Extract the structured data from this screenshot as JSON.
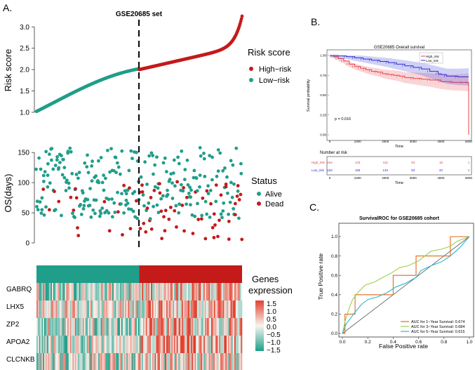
{
  "colors": {
    "high": "#c41a1a",
    "low": "#1f9e89",
    "dead": "#c41a1a",
    "alive": "#1f9e89",
    "km_high": "#e8404a",
    "km_low": "#2b2bd6",
    "auc1": "#e5681c",
    "auc3": "#9bd14a",
    "auc5": "#2bb5d8"
  },
  "panel_labels": {
    "a": "A.",
    "b": "B.",
    "c": "C."
  },
  "chart_data": [
    {
      "id": "risk-score",
      "type": "scatter",
      "title": "GSE20685 set",
      "ylabel": "Risk score",
      "ylim": [
        0.95,
        3.3
      ],
      "yticks": [
        "1.0",
        "1.5",
        "2.0",
        "2.5",
        "3.0"
      ],
      "cutoff_index": 163,
      "n": 327,
      "cutoff_value": 2.0,
      "legend_title": "Risk score",
      "legend": [
        "High−risk",
        "Low−risk"
      ]
    },
    {
      "id": "survival-status",
      "type": "scatter",
      "ylabel": "OS(days)",
      "ylim": [
        0,
        170
      ],
      "yticks": [
        "0",
        "50",
        "100",
        "150"
      ],
      "legend_title": "Status",
      "legend": [
        "Alive",
        "Dead"
      ]
    },
    {
      "id": "expression-heatmap",
      "type": "heatmap",
      "genes": [
        "GABRQ",
        "LHX5",
        "ZP2",
        "APOA2",
        "CLCNKB"
      ],
      "legend_title": [
        "Genes",
        "expression"
      ],
      "scale": [
        "1.5",
        "1.0",
        "0.5",
        "0.0",
        "−0.5",
        "−1.0",
        "−1.5"
      ]
    },
    {
      "id": "km-plot",
      "type": "line",
      "title": "GSE20685 Overall survival",
      "xlabel": "Time",
      "ylabel": "Survival probability",
      "xlim": [
        0,
        5000
      ],
      "ylim": [
        0,
        1
      ],
      "xticks": [
        "0",
        "1000",
        "2000",
        "3000",
        "4000",
        "5000"
      ],
      "yticks": [
        "0.00",
        "0.25",
        "0.50",
        "0.75",
        "1.00"
      ],
      "pvalue": "p = 0.016",
      "series": [
        {
          "name": "High_risk",
          "x": [
            0,
            150,
            300,
            500,
            700,
            900,
            1100,
            1300,
            1500,
            1700,
            1900,
            2100,
            2300,
            2500,
            2700,
            3000,
            3300,
            3600,
            4000,
            4400,
            4800,
            4990,
            5000
          ],
          "y": [
            1,
            0.985,
            0.96,
            0.93,
            0.89,
            0.86,
            0.84,
            0.82,
            0.8,
            0.79,
            0.77,
            0.76,
            0.75,
            0.74,
            0.72,
            0.71,
            0.7,
            0.69,
            0.67,
            0.66,
            0.66,
            0.66,
            0.0
          ]
        },
        {
          "name": "Low_risk",
          "x": [
            0,
            300,
            600,
            900,
            1200,
            1500,
            1800,
            2100,
            2400,
            2700,
            3000,
            3300,
            3600,
            3900,
            4000,
            4200,
            4600,
            5000
          ],
          "y": [
            1,
            0.995,
            0.985,
            0.97,
            0.955,
            0.94,
            0.925,
            0.91,
            0.89,
            0.87,
            0.85,
            0.83,
            0.8,
            0.77,
            0.76,
            0.74,
            0.73,
            0.73
          ]
        }
      ],
      "risk_table": {
        "title": "Number at risk",
        "rows": [
          {
            "label": "High_risk",
            "values": [
              "164",
              "143",
              "115",
              "63",
              "18",
              "1"
            ]
          },
          {
            "label": "Low_risk",
            "values": [
              "163",
              "155",
              "140",
              "83",
              "33",
              "1"
            ]
          }
        ],
        "xticks": [
          "0",
          "1000",
          "2000",
          "3000",
          "4000",
          "5000"
        ],
        "xlabel": "Time"
      }
    },
    {
      "id": "roc-plot",
      "type": "line",
      "title": "SurvivalROC for GSE20685 cohort",
      "xlabel": "False Positive rate",
      "ylabel": "True Positive rate",
      "xlim": [
        0,
        1
      ],
      "ylim": [
        0,
        1
      ],
      "xticks": [
        "0.0",
        "0.2",
        "0.4",
        "0.6",
        "0.8",
        "1.0"
      ],
      "yticks": [
        "0.0",
        "0.2",
        "0.4",
        "0.6",
        "0.8",
        "1.0"
      ],
      "series": [
        {
          "name": "AUC for 1−Year Survival: 0.674",
          "x": [
            0,
            0.02,
            0.02,
            0.1,
            0.1,
            0.4,
            0.4,
            0.58,
            0.58,
            0.85,
            0.85,
            1.0
          ],
          "y": [
            0,
            0,
            0.2,
            0.2,
            0.4,
            0.4,
            0.6,
            0.6,
            0.8,
            0.8,
            1.0,
            1.0
          ]
        },
        {
          "name": "AUC for 3−Year Survival: 0.684",
          "x": [
            0,
            0.02,
            0.05,
            0.08,
            0.12,
            0.18,
            0.25,
            0.32,
            0.38,
            0.45,
            0.52,
            0.6,
            0.65,
            0.7,
            0.78,
            0.85,
            0.9,
            1.0
          ],
          "y": [
            0,
            0.12,
            0.25,
            0.35,
            0.42,
            0.5,
            0.53,
            0.58,
            0.62,
            0.68,
            0.7,
            0.75,
            0.8,
            0.85,
            0.87,
            0.9,
            0.95,
            1.0
          ]
        },
        {
          "name": "AUC for 5−Year Survival: 0.615",
          "x": [
            0,
            0.03,
            0.06,
            0.1,
            0.15,
            0.2,
            0.28,
            0.35,
            0.42,
            0.5,
            0.58,
            0.62,
            0.7,
            0.78,
            0.85,
            0.92,
            1.0
          ],
          "y": [
            0,
            0.1,
            0.15,
            0.22,
            0.3,
            0.35,
            0.38,
            0.42,
            0.48,
            0.52,
            0.58,
            0.65,
            0.7,
            0.74,
            0.8,
            0.88,
            1.0
          ]
        }
      ]
    }
  ]
}
